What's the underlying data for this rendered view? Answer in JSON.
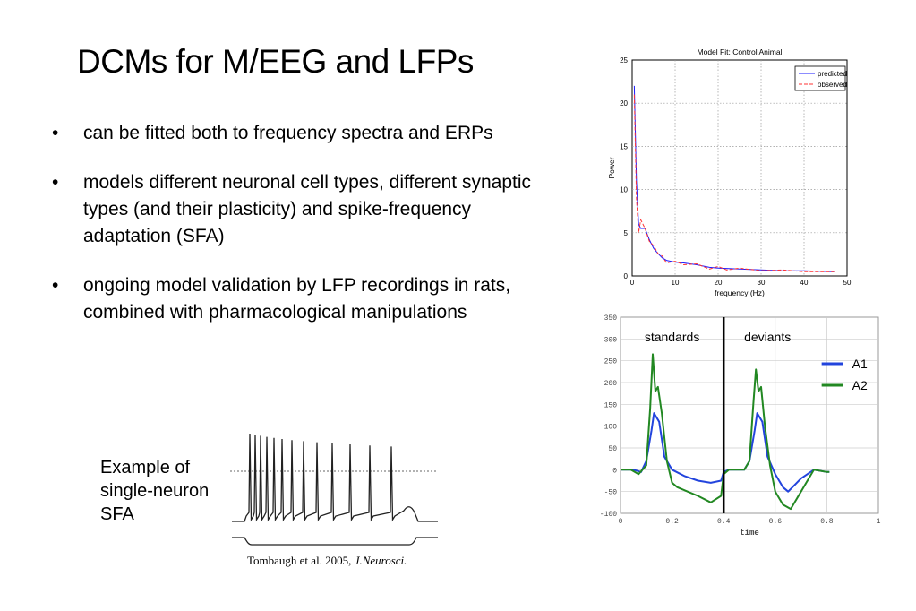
{
  "slide": {
    "title": "DCMs for M/EEG and LFPs",
    "bullet_glyph": "•",
    "bullets": [
      "can be fitted both to frequency spectra and ERPs",
      "models different neuronal cell types, different synaptic types (and their plasticity) and spike-frequency adaptation (SFA)",
      "ongoing model validation by LFP recordings in rats, combined with pharmacological manipulations"
    ],
    "sfa_caption": [
      "Example of",
      "single-neuron",
      "SFA"
    ],
    "citation": {
      "authors": "Tombaugh et al. 2005, ",
      "journal": "J.Neurosci."
    }
  },
  "chart_data": [
    {
      "type": "line",
      "title": "Model Fit: Control Animal",
      "xlabel": "frequency (Hz)",
      "ylabel": "Power",
      "xlim": [
        0,
        50
      ],
      "ylim": [
        0,
        25
      ],
      "xticks": [
        0,
        10,
        20,
        30,
        40,
        50
      ],
      "yticks": [
        0,
        5,
        10,
        15,
        20,
        25
      ],
      "grid": true,
      "legend": "top-right",
      "series": [
        {
          "name": "predicted",
          "color": "#1a1aff",
          "style": "solid",
          "x": [
            0.5,
            1,
            1.5,
            2,
            3,
            4,
            5,
            6,
            7,
            8,
            10,
            12,
            15,
            18,
            20,
            25,
            30,
            35,
            40,
            47
          ],
          "y": [
            22,
            11,
            6,
            5.5,
            5.5,
            4.2,
            3.2,
            2.6,
            2.1,
            1.8,
            1.6,
            1.5,
            1.3,
            1.0,
            0.9,
            0.8,
            0.7,
            0.6,
            0.6,
            0.5
          ]
        },
        {
          "name": "observed",
          "color": "#ff3333",
          "style": "dashed",
          "x": [
            0.5,
            1,
            1.5,
            2,
            3,
            4,
            5,
            6,
            7,
            8,
            10,
            12,
            15,
            18,
            20,
            22,
            25,
            30,
            35,
            40,
            47
          ],
          "y": [
            21,
            9,
            5,
            6.5,
            5.5,
            4.0,
            3.5,
            2.6,
            2.3,
            1.5,
            1.7,
            1.3,
            1.4,
            0.8,
            1.1,
            0.7,
            0.9,
            0.6,
            0.7,
            0.5,
            0.5
          ]
        }
      ]
    },
    {
      "type": "line",
      "xlabel": "time",
      "ylabel": "",
      "xlim": [
        0,
        1
      ],
      "ylim": [
        -100,
        350
      ],
      "xticks": [
        0,
        0.2,
        0.4,
        0.6,
        0.8,
        1
      ],
      "xtick_labels": [
        "0",
        "0.2",
        "0.4",
        "0.6",
        "0.8",
        "1"
      ],
      "yticks": [
        -100,
        -50,
        0,
        50,
        100,
        150,
        200,
        250,
        300,
        350
      ],
      "grid": true,
      "legend": "top-right",
      "annotations": [
        {
          "text": "standards"
        },
        {
          "text": "deviants"
        }
      ],
      "divider_x": 0.4,
      "series": [
        {
          "name": "A1",
          "color": "#2244dd",
          "x": [
            0,
            0.05,
            0.08,
            0.1,
            0.12,
            0.13,
            0.15,
            0.17,
            0.2,
            0.25,
            0.3,
            0.35,
            0.39,
            0.4,
            0.42,
            0.45,
            0.48,
            0.5,
            0.52,
            0.53,
            0.55,
            0.57,
            0.6,
            0.63,
            0.65,
            0.7,
            0.75,
            0.8,
            0.81
          ],
          "y": [
            0,
            0,
            -5,
            20,
            90,
            130,
            110,
            30,
            0,
            -15,
            -25,
            -30,
            -25,
            -5,
            0,
            0,
            0,
            20,
            90,
            130,
            110,
            30,
            -10,
            -40,
            -50,
            -20,
            0,
            -5,
            -5
          ]
        },
        {
          "name": "A2",
          "color": "#228822",
          "x": [
            0,
            0.04,
            0.07,
            0.1,
            0.115,
            0.125,
            0.135,
            0.145,
            0.16,
            0.18,
            0.2,
            0.22,
            0.26,
            0.3,
            0.35,
            0.39,
            0.4,
            0.42,
            0.45,
            0.48,
            0.5,
            0.515,
            0.525,
            0.535,
            0.545,
            0.56,
            0.58,
            0.6,
            0.63,
            0.66,
            0.7,
            0.75,
            0.8,
            0.81
          ],
          "y": [
            0,
            0,
            -10,
            10,
            140,
            265,
            180,
            190,
            130,
            20,
            -30,
            -40,
            -50,
            -60,
            -75,
            -60,
            -10,
            0,
            0,
            0,
            20,
            150,
            230,
            180,
            190,
            100,
            10,
            -50,
            -80,
            -90,
            -50,
            0,
            -5,
            -5
          ]
        }
      ]
    }
  ]
}
